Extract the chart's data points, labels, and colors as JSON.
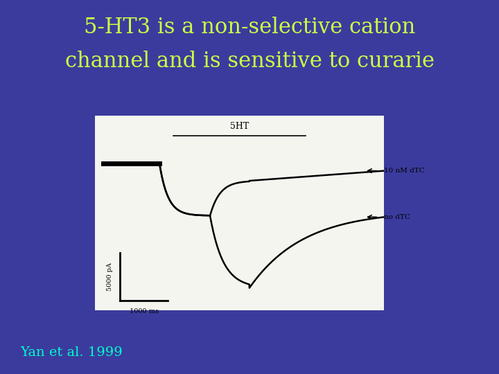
{
  "bg_color": "#3b3b9e",
  "title_line1": "5-HT3 is a non-selective cation",
  "title_line2": "channel and is sensitive to curarie",
  "title_color": "#ccff44",
  "title_fontsize": 22,
  "citation": "Yan et al. 1999",
  "citation_color": "#00ffcc",
  "citation_fontsize": 14,
  "panel_bg": "#f5f5f0",
  "label_5HT": "5HT",
  "label_10nM": "10 nM dTC",
  "label_nodTC": "no dTC",
  "scalebar_y_label": "5000 pA",
  "scalebar_x_label": "1000 ms"
}
